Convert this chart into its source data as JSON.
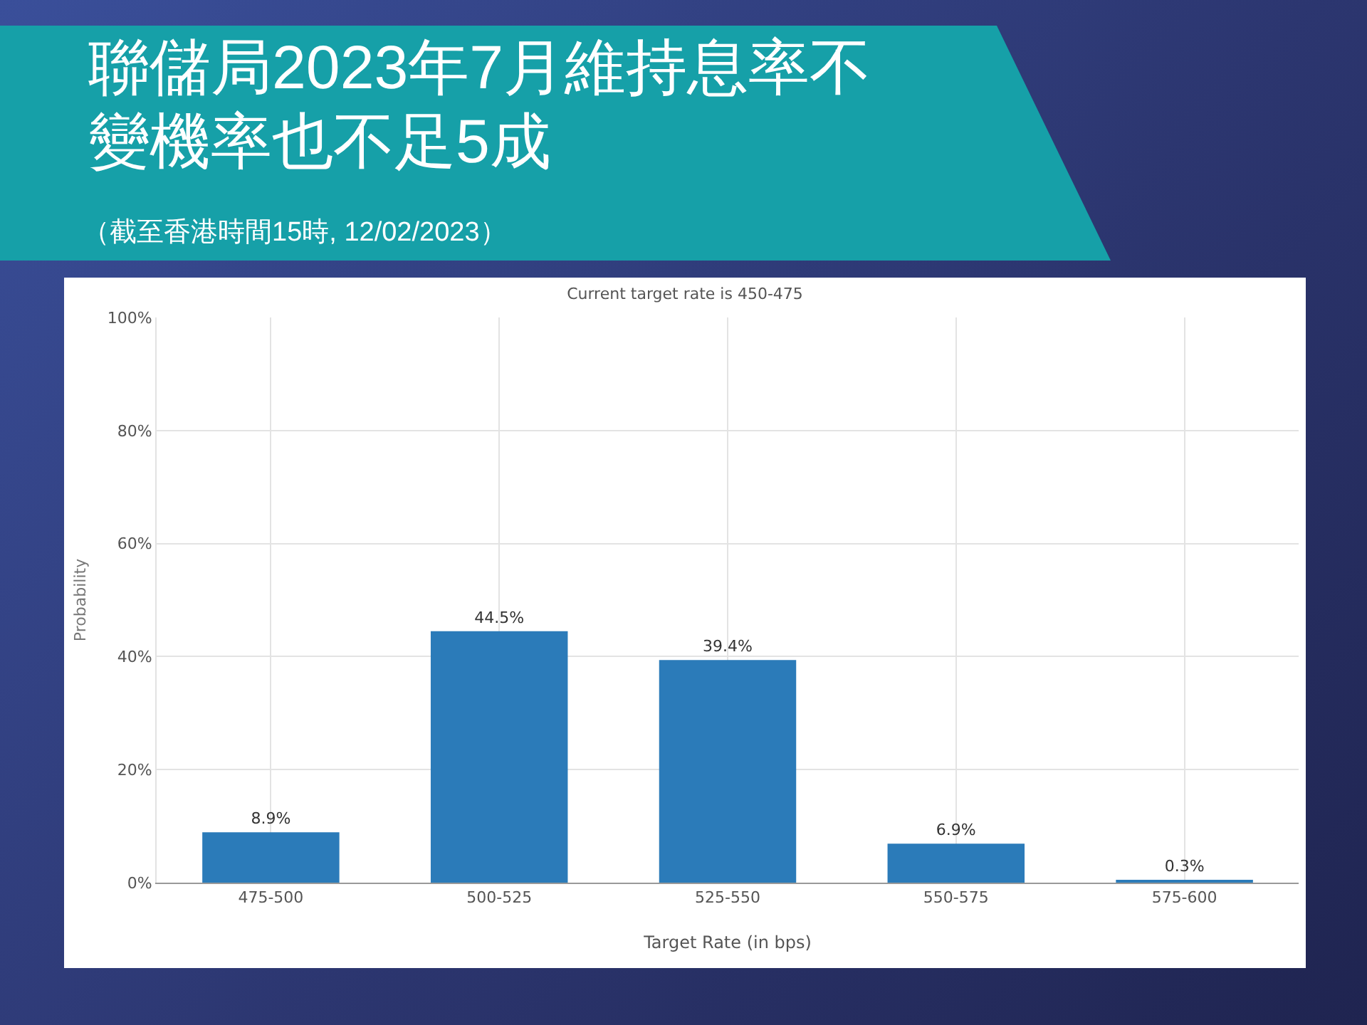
{
  "chart_data": {
    "type": "bar",
    "title": "聯儲局2023年7月維持息率不變機率也不足5成",
    "subtitle": "Current target rate is 450-475",
    "annotations": [
      "（截至香港時間15時, 12/02/2023）"
    ],
    "xlabel": "Target Rate (in bps)",
    "ylabel": "Probability",
    "categories": [
      "475-500",
      "500-525",
      "525-550",
      "550-575",
      "575-600"
    ],
    "values": [
      8.9,
      44.5,
      39.4,
      6.9,
      0.3
    ],
    "color": "#2b7bb9",
    "value_labels": [
      "8.9%",
      "44.5%",
      "39.4%",
      "6.9%",
      "0.3%"
    ],
    "ylim": [
      0,
      100
    ],
    "yticks": [
      {
        "value": 0,
        "label": "0%"
      },
      {
        "value": 20,
        "label": "20%"
      },
      {
        "value": 40,
        "label": "40%"
      },
      {
        "value": 60,
        "label": "60%"
      },
      {
        "value": 80,
        "label": "80%"
      },
      {
        "value": 100,
        "label": "100%"
      }
    ],
    "grid": true,
    "legend": false
  }
}
